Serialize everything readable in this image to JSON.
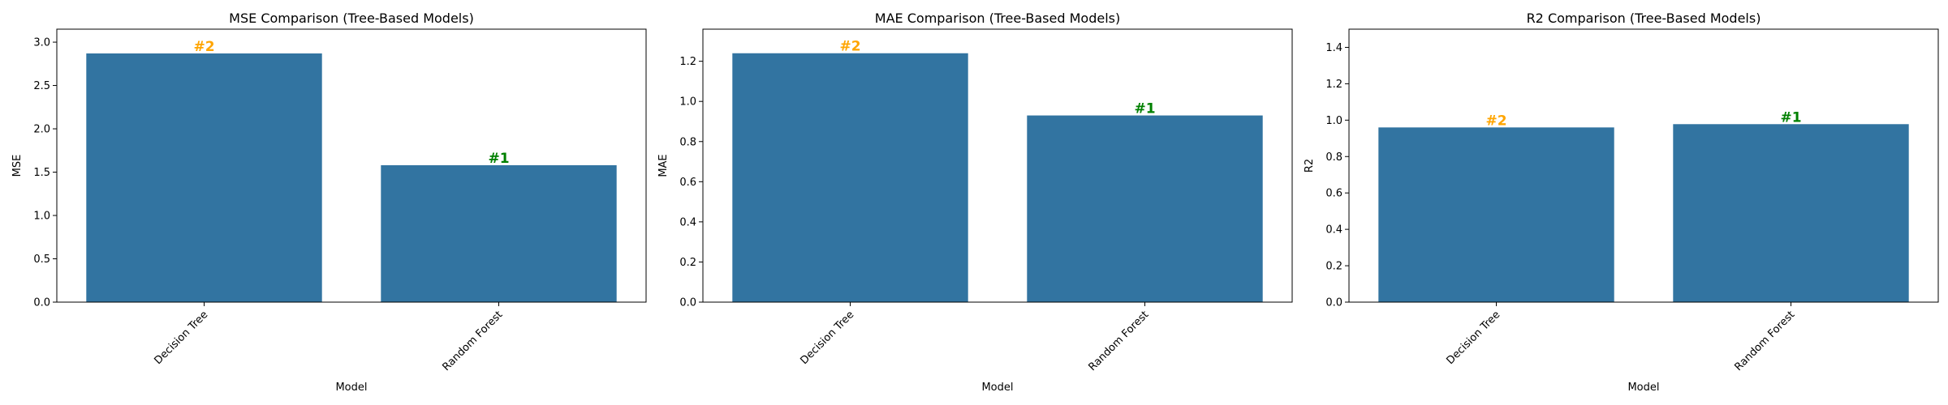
{
  "colors": {
    "bar": "#3274a1",
    "rank_first": "#008000",
    "rank_second": "#ffa500",
    "axis": "#000000",
    "background": "#ffffff"
  },
  "chart_data": [
    {
      "type": "bar",
      "title": "MSE Comparison (Tree-Based Models)",
      "xlabel": "Model",
      "ylabel": "MSE",
      "categories": [
        "Decision Tree",
        "Random Forest"
      ],
      "values": [
        2.87,
        1.58
      ],
      "ranks": [
        "#2",
        "#1"
      ],
      "ylim": [
        0,
        3.15
      ],
      "yticks": [
        0,
        0.5,
        1.0,
        1.5,
        2.0,
        2.5,
        3.0
      ],
      "ytick_labels": [
        "0.0",
        "0.5",
        "1.0",
        "1.5",
        "2.0",
        "2.5",
        "3.0"
      ],
      "grid": false,
      "legend": "none"
    },
    {
      "type": "bar",
      "title": "MAE Comparison (Tree-Based Models)",
      "xlabel": "Model",
      "ylabel": "MAE",
      "categories": [
        "Decision Tree",
        "Random Forest"
      ],
      "values": [
        1.24,
        0.93
      ],
      "ranks": [
        "#2",
        "#1"
      ],
      "ylim": [
        0,
        1.36
      ],
      "yticks": [
        0,
        0.2,
        0.4,
        0.6,
        0.8,
        1.0,
        1.2
      ],
      "ytick_labels": [
        "0.0",
        "0.2",
        "0.4",
        "0.6",
        "0.8",
        "1.0",
        "1.2"
      ],
      "grid": false,
      "legend": "none"
    },
    {
      "type": "bar",
      "title": "R2 Comparison (Tree-Based Models)",
      "xlabel": "Model",
      "ylabel": "R2",
      "categories": [
        "Decision Tree",
        "Random Forest"
      ],
      "values": [
        0.96,
        0.978
      ],
      "ranks": [
        "#2",
        "#1"
      ],
      "ylim": [
        0,
        1.5
      ],
      "yticks": [
        0,
        0.2,
        0.4,
        0.6,
        0.8,
        1.0,
        1.2,
        1.4
      ],
      "ytick_labels": [
        "0.0",
        "0.2",
        "0.4",
        "0.6",
        "0.8",
        "1.0",
        "1.2",
        "1.4"
      ],
      "grid": false,
      "legend": "none"
    }
  ]
}
